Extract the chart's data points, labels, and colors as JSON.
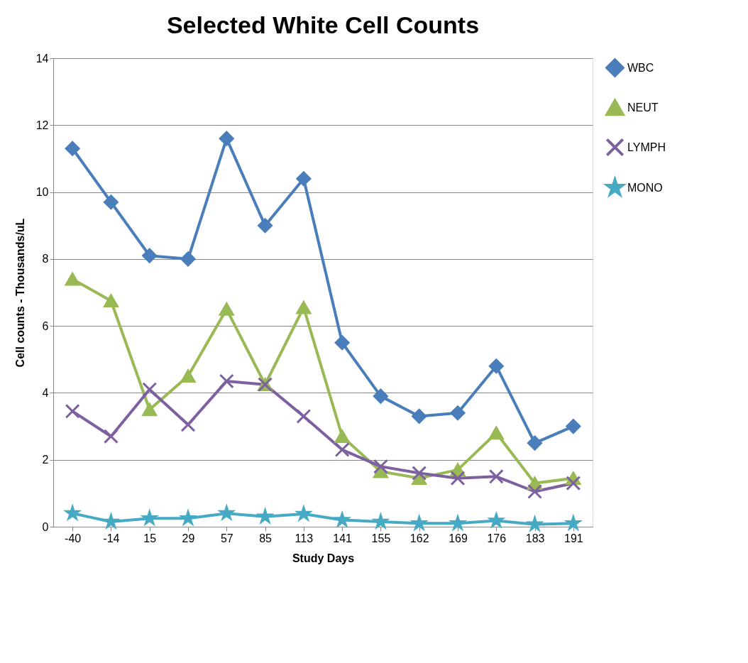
{
  "chart_data": {
    "type": "line",
    "title": "Selected White Cell Counts",
    "xlabel": "Study  Days",
    "ylabel": "Cell counts  - Thousands/uL",
    "categories": [
      "-40",
      "-14",
      "15",
      "29",
      "57",
      "85",
      "113",
      "141",
      "155",
      "162",
      "169",
      "176",
      "183",
      "191"
    ],
    "series": [
      {
        "name": "WBC",
        "color": "#4a7ebb",
        "marker": "diamond",
        "values": [
          11.3,
          9.7,
          8.1,
          8.0,
          11.6,
          9.0,
          10.4,
          5.5,
          3.9,
          3.3,
          3.4,
          4.8,
          2.5,
          3.0
        ]
      },
      {
        "name": "NEUT",
        "color": "#98b954",
        "marker": "triangle",
        "values": [
          7.4,
          6.75,
          3.5,
          4.5,
          6.5,
          4.25,
          6.55,
          2.7,
          1.65,
          1.45,
          1.7,
          2.8,
          1.3,
          1.45
        ]
      },
      {
        "name": "LYMPH",
        "color": "#7d60a0",
        "marker": "cross",
        "values": [
          3.45,
          2.7,
          4.1,
          3.05,
          4.35,
          4.25,
          3.3,
          2.3,
          1.8,
          1.6,
          1.45,
          1.5,
          1.05,
          1.3
        ]
      },
      {
        "name": "MONO",
        "color": "#46aac5",
        "marker": "star",
        "values": [
          0.4,
          0.15,
          0.25,
          0.25,
          0.4,
          0.3,
          0.38,
          0.2,
          0.15,
          0.1,
          0.1,
          0.18,
          0.07,
          0.1
        ]
      }
    ],
    "ylim": [
      0,
      14
    ],
    "yticks": [
      0,
      2,
      4,
      6,
      8,
      10,
      12,
      14
    ],
    "grid": "y",
    "legend": "right",
    "line_style": "solid"
  }
}
